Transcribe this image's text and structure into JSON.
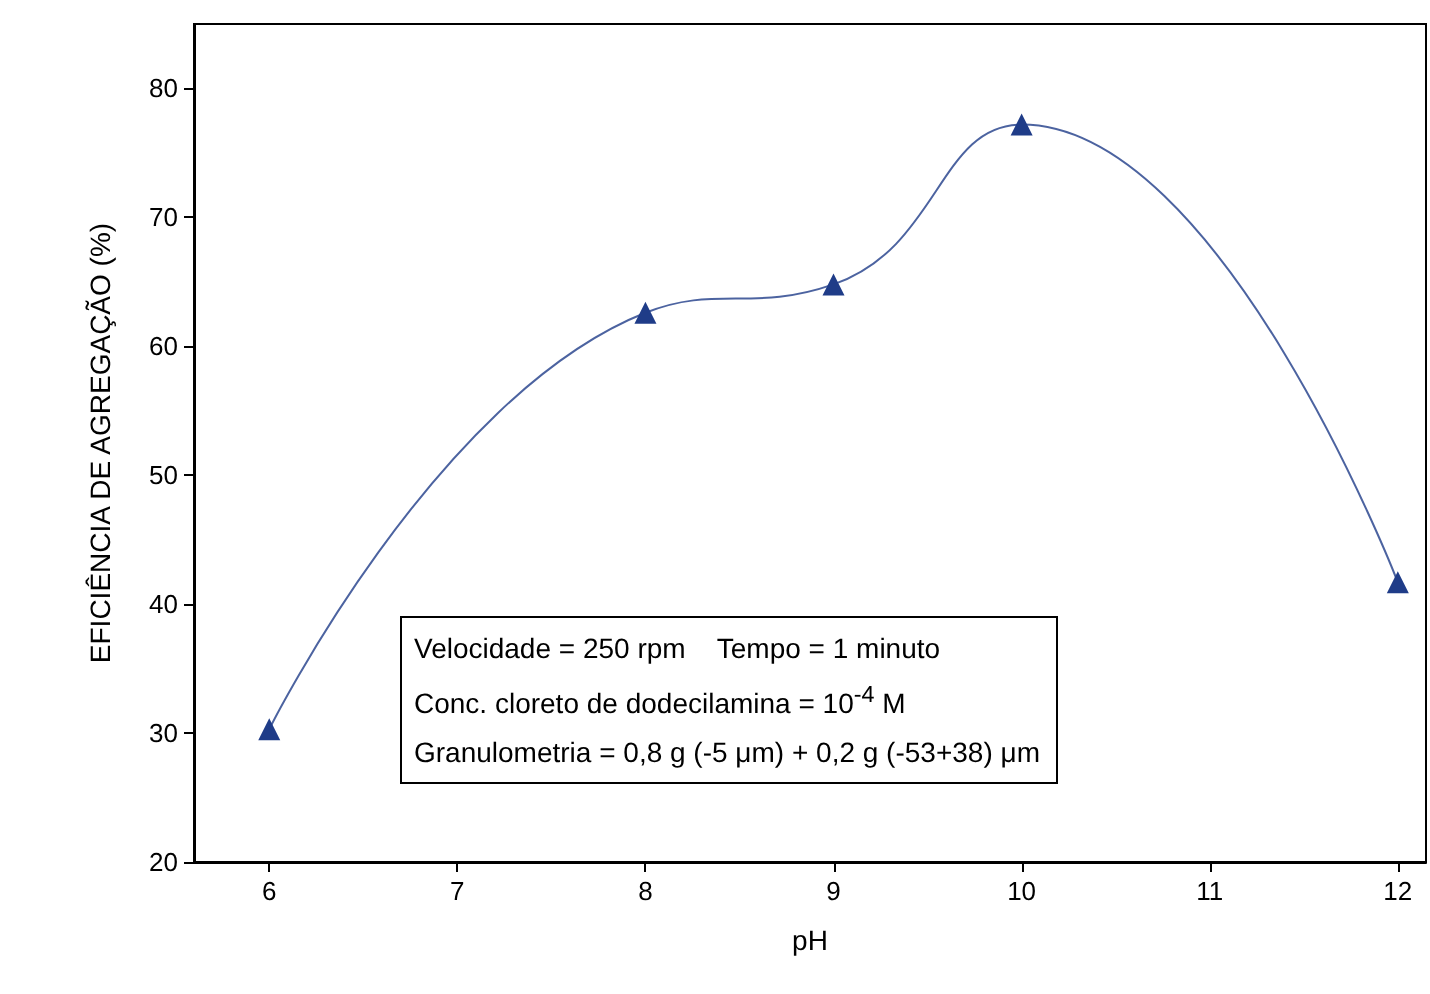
{
  "chart_data": {
    "type": "line",
    "xlabel": "pH",
    "ylabel": "EFICIÊNCIA DE AGREGAÇÃO (%)",
    "x": [
      6,
      8,
      9,
      10,
      12
    ],
    "series": [
      {
        "color": "#1f3c88",
        "values": [
          30.3,
          62.6,
          64.8,
          77.2,
          41.7
        ]
      }
    ],
    "xlim": [
      5.6,
      12.15
    ],
    "xticks": [
      6,
      7,
      8,
      9,
      10,
      11,
      12
    ],
    "ylim": [
      20,
      85
    ],
    "yticks": [
      20,
      30,
      40,
      50,
      60,
      70,
      80
    ],
    "marker": "triangle",
    "line_style": "solid",
    "grid": false,
    "annotations": [
      "Velocidade = 250 rpm    Tempo = 1 minuto",
      "Conc. cloreto de dodecilamina = 10$^{-4}$ M",
      "Granulometria = 0,8 g (-5 μm) + 0,2 g (-53+38) μm"
    ]
  }
}
